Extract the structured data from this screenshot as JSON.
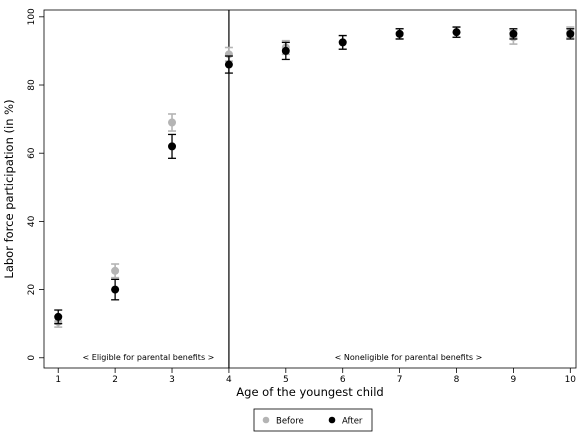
{
  "chart_data": {
    "type": "scatter",
    "title": "",
    "xlabel": "Age of the youngest child",
    "ylabel": "Labor force participation (in %)",
    "x": [
      1,
      2,
      3,
      4,
      5,
      6,
      7,
      8,
      9,
      10
    ],
    "x_ticks": [
      "1",
      "2",
      "3",
      "4",
      "5",
      "6",
      "7",
      "8",
      "9",
      "10"
    ],
    "y_ticks": [
      "0",
      "20",
      "40",
      "60",
      "80",
      "100"
    ],
    "xlim": [
      0.75,
      10.1
    ],
    "ylim": [
      -3,
      102
    ],
    "vline_x": 4,
    "series": [
      {
        "name": "Before",
        "color": "#b4b4b4",
        "values": [
          10.5,
          25.5,
          69,
          89,
          91,
          92.5,
          95,
          95.5,
          94,
          95.5
        ],
        "ci_low": [
          9,
          23.5,
          66.5,
          87,
          89,
          90.5,
          93.5,
          94,
          92,
          94
        ],
        "ci_high": [
          12,
          27.5,
          71.5,
          91,
          93,
          94.5,
          96.5,
          97,
          96,
          97
        ]
      },
      {
        "name": "After",
        "color": "#000000",
        "values": [
          12,
          20,
          62,
          86,
          90,
          92.5,
          95,
          95.5,
          95,
          95
        ],
        "ci_low": [
          10,
          17,
          58.5,
          83.5,
          87.5,
          90.5,
          93.5,
          94,
          93.5,
          93.5
        ],
        "ci_high": [
          14,
          23,
          65.5,
          88.5,
          92.5,
          94.5,
          96.5,
          97,
          96.5,
          96.5
        ]
      }
    ],
    "annotations": {
      "left": "< Eligible for parental benefits >",
      "right": "< Noneligible for parental benefits >"
    },
    "legend": "bottom-center",
    "grid": false
  }
}
